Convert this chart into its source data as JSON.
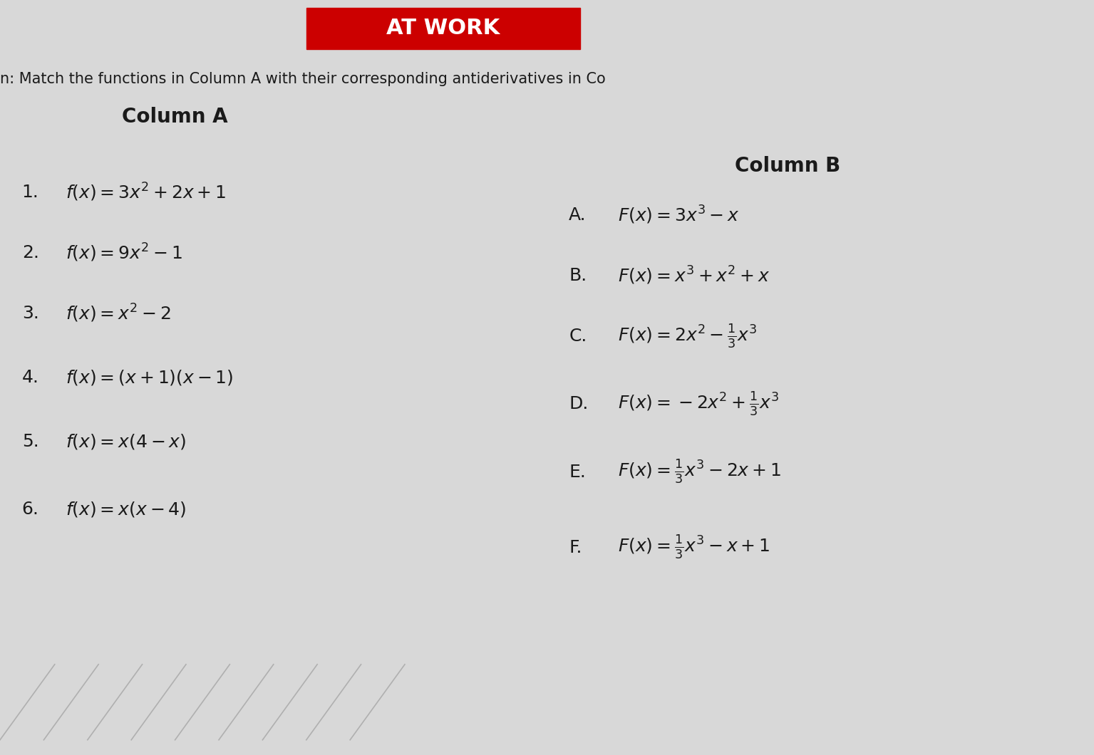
{
  "background_color": "#d8d8d8",
  "title_banner_color": "#cc0000",
  "title_banner_text": "AT WORK",
  "subtitle": "n: Match the functions in Column A with their corresponding antiderivatives in Co",
  "col_a_header": "Column A",
  "col_b_header": "Column B",
  "col_a_items": [
    {
      "num": "1.",
      "func": "$f(x) = 3x^2 + 2x + 1$"
    },
    {
      "num": "2.",
      "func": "$f(x) = 9x^2 - 1$"
    },
    {
      "num": "3.",
      "func": "$f(x) = x^2 - 2$"
    },
    {
      "num": "4.",
      "func": "$f(x) = (x+1)(x-1)$"
    },
    {
      "num": "5.",
      "func": "$f(x) = x(4-x)$"
    },
    {
      "num": "6.",
      "func": "$f(x) = x(x-4)$"
    }
  ],
  "col_b_items": [
    {
      "letter": "A.",
      "func": "$F(x) = 3x^3 - x$"
    },
    {
      "letter": "B.",
      "func": "$F(x) = x^3 + x^2 + x$"
    },
    {
      "letter": "C.",
      "func": "$F(x) = 2x^2 - \\frac{1}{3}x^3$"
    },
    {
      "letter": "D.",
      "func": "$F(x) = -2x^2 + \\frac{1}{3}x^3$"
    },
    {
      "letter": "E.",
      "func": "$F(x) = \\frac{1}{3}x^3 - 2x + 1$"
    },
    {
      "letter": "F.",
      "func": "$F(x) = \\frac{1}{3}x^3 - x + 1$"
    }
  ],
  "text_color": "#1a1a1a",
  "header_fontsize": 20,
  "item_fontsize": 18,
  "subtitle_fontsize": 15
}
